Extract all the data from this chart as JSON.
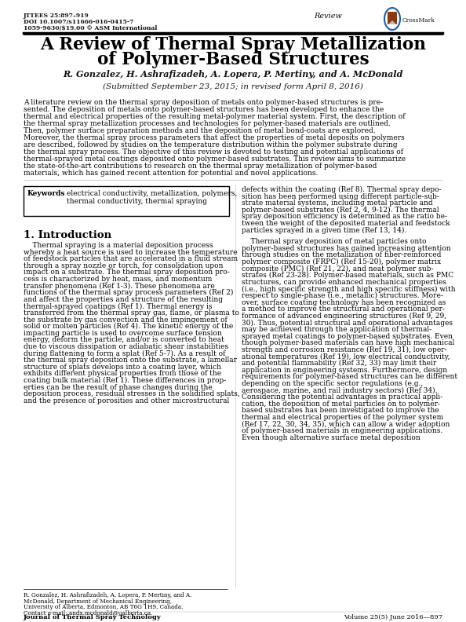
{
  "title_line1": "A Review of Thermal Spray Metallization",
  "title_line2": "of Polymer-Based Structures",
  "authors": "R. Gonzalez, H. Ashrafizadeh, A. Lopera, P. Mertiny, and A. McDonald",
  "submitted": "(Submitted September 23, 2015; in revised form April 8, 2016)",
  "journal_info_line1": "JTTEES 25:897–919",
  "journal_info_line2": "DOI 10.1007/s11666-016-0415-7",
  "journal_info_line3": "1059-9630/$19.00 © ASM International",
  "review_label": "Review",
  "crossmark_text": "CrossMark",
  "keywords_label": "Keywords",
  "keywords_text": "electrical conductivity, metallization, polymers,\nthermal conductivity, thermal spraying",
  "section1_title": "1. Introduction",
  "abstract_lines": [
    "A literature review on the thermal spray deposition of metals onto polymer-based structures is pre-",
    "sented. The deposition of metals onto polymer-based structures has been developed to enhance the",
    "thermal and electrical properties of the resulting metal-polymer material system. First, the description of",
    "the thermal spray metallization processes and technologies for polymer-based materials are outlined.",
    "Then, polymer surface preparation methods and the deposition of metal bond-coats are explored.",
    "Moreover, the thermal spray process parameters that affect the properties of metal deposits on polymers",
    "are described, followed by studies on the temperature distribution within the polymer substrate during",
    "the thermal spray process. The objective of this review is devoted to testing and potential applications of",
    "thermal-sprayed metal coatings deposited onto polymer-based substrates. This review aims to summarize",
    "the state-of-the-art contributions to research on the thermal spray metallization of polymer-based",
    "materials, which has gained recent attention for potential and novel applications."
  ],
  "left_col_lines": [
    "    Thermal spraying is a material deposition process",
    "whereby a heat source is used to increase the temperature",
    "of feedstock particles that are accelerated in a fluid stream",
    "through a spray nozzle or torch, for consolidation upon",
    "impact on a substrate. The thermal spray deposition pro-",
    "cess is characterized by heat, mass, and momentum",
    "transfer phenomena (Ref 1-3). These phenomena are",
    "functions of the thermal spray process parameters (Ref 2)",
    "and affect the properties and structure of the resulting",
    "thermal-sprayed coatings (Ref 1). Thermal energy is",
    "transferred from the thermal spray gas, flame, or plasma to",
    "the substrate by gas convection and the impingement of",
    "solid or molten particles (Ref 4). The kinetic energy of the",
    "impacting particle is used to overcome surface tension",
    "energy, deform the particle, and/or is converted to heat",
    "due to viscous dissipation or adiabatic shear instabilities",
    "during flattening to form a splat (Ref 5-7). As a result of",
    "the thermal spray deposition onto the substrate, a lamellar",
    "structure of splats develops into a coating layer, which",
    "exhibits different physical properties from those of the",
    "coating bulk material (Ref 1). These differences in prop-",
    "erties can be the result of phase changes during the",
    "deposition process, residual stresses in the solidified splats,",
    "and the presence of porosities and other microstructural"
  ],
  "right_col_lines_1": [
    "defects within the coating (Ref 8). Thermal spray depo-",
    "sition has been performed using different particle-sub-",
    "strate material systems, including metal particle and",
    "polymer-based substrates (Ref 2, 4, 9-12). The thermal",
    "spray deposition efficiency is determined as the ratio be-",
    "tween the weight of the deposited material and feedstock",
    "particles sprayed in a given time (Ref 13, 14)."
  ],
  "right_col_lines_2": [
    "    Thermal spray deposition of metal particles onto",
    "polymer-based structures has gained increasing attention",
    "through studies on the metallization of fiber-reinforced",
    "polymer composite (FRPC) (Ref 15-20), polymer matrix",
    "composite (PMC) (Ref 21, 22), and neat polymer sub-",
    "strates (Ref 23-28). Polymer-based materials, such as PMC",
    "structures, can provide enhanced mechanical properties",
    "(i.e., high specific strength and high specific stiffness) with",
    "respect to single-phase (i.e., metallic) structures. More-",
    "over, surface coating technology has been recognized as",
    "a method to improve the structural and operational per-",
    "formance of advanced engineering structures (Ref 9, 29,",
    "30). Thus, potential structural and operational advantages",
    "may be achieved through the application of thermal-",
    "sprayed metal coatings to polymer-based substrates. Even",
    "though polymer-based materials can have high mechanical",
    "strength and corrosion resistance (Ref 19, 31), low oper-",
    "ational temperatures (Ref 19), low electrical conductivity,",
    "and potential flammability (Ref 32, 33) may limit their",
    "application in engineering systems. Furthermore, design",
    "requirements for polymer-based structures can be different",
    "depending on the specific sector regulations (e.g.,",
    "aerospace, marine, and rail industry sectors) (Ref 34).",
    "Considering the potential advantages in practical appli-",
    "cation, the deposition of metal particles on to polymer-",
    "based substrates has been investigated to improve the",
    "thermal and electrical properties of the polymer system",
    "(Ref 17, 22, 30, 34, 35), which can allow a wider adoption",
    "of polymer-based materials in engineering applications.",
    "Even though alternative surface metal deposition"
  ],
  "footnote_lines": [
    "R. Gonzalez, H. Ashrafizadeh, A. Lopera, P. Mertiny, and A.",
    "McDonald, Department of Mechanical Engineering,",
    "University of Alberta, Edmonton, AB T6G 1H9, Canada.",
    "Contact e-mail: andx.mcdonald@ualberta.ca."
  ],
  "footer_journal": "Journal of Thermal Spray Technology",
  "footer_volume": "Volume 25(5) June 2016—897",
  "bg_color": "#ffffff",
  "text_color": "#000000",
  "title_color": "#000000"
}
